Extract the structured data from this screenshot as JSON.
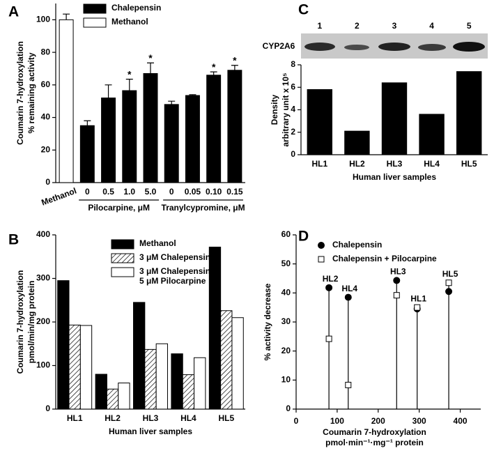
{
  "chart_data": [
    {
      "type": "bar",
      "panel": "A",
      "ylabel": [
        "Coumarin 7-hydroxylation",
        "% remaining activity"
      ],
      "categories": [
        "Methanol",
        "0",
        "0.5",
        "1.0",
        "5.0",
        "0",
        "0.05",
        "0.10",
        "0.15"
      ],
      "groups": [
        {
          "label": "Pilocarpine, μM",
          "span": [
            1,
            4
          ]
        },
        {
          "label": "Tranylcypromine, μM",
          "span": [
            5,
            8
          ]
        }
      ],
      "series": [
        {
          "name": "Chalepensin",
          "color": "#000000",
          "values": [
            null,
            35,
            52,
            56.5,
            67,
            48,
            53.5,
            66,
            69
          ],
          "errors": [
            null,
            3,
            8,
            7,
            6.5,
            2,
            0.5,
            2,
            3
          ]
        },
        {
          "name": "Methanol",
          "color": "#ffffff",
          "values": [
            100,
            null,
            null,
            null,
            null,
            null,
            null,
            null,
            null
          ],
          "errors": [
            3.5,
            null,
            null,
            null,
            null,
            null,
            null,
            null,
            null
          ]
        }
      ],
      "significance": [
        null,
        null,
        null,
        "*",
        "*",
        null,
        null,
        "*",
        "*"
      ],
      "ylim": [
        0,
        110
      ],
      "yticks": [
        0,
        20,
        40,
        60,
        80,
        100
      ]
    },
    {
      "type": "bar",
      "panel": "B",
      "ylabel": [
        "Coumarin 7-hydroxylation",
        "pmol/min/mg protein"
      ],
      "xlabel": [
        "Human liver samples"
      ],
      "categories": [
        "HL1",
        "HL2",
        "HL3",
        "HL4",
        "HL5"
      ],
      "series": [
        {
          "name": "Methanol",
          "color": "#000000",
          "values": [
            295,
            80,
            245,
            127,
            372
          ]
        },
        {
          "name": "3 μM Chalepensin",
          "color": "#ffffff",
          "hatch": true,
          "values": [
            193,
            46,
            137,
            79,
            226
          ]
        },
        {
          "name": "3 μM Chalepensin + 5 μM Pilocarpine",
          "color": "#ffffff",
          "values": [
            192,
            60,
            150,
            118,
            210
          ]
        }
      ],
      "ylim": [
        0,
        400
      ],
      "yticks": [
        0,
        100,
        200,
        300,
        400
      ]
    },
    {
      "type": "bar",
      "panel": "C",
      "blot": {
        "label": "CYP2A6",
        "lanes": [
          "1",
          "2",
          "3",
          "4",
          "5"
        ]
      },
      "ylabel": [
        "Density",
        "arbitrary unit x 10⁵"
      ],
      "xlabel": [
        "Human liver samples"
      ],
      "categories": [
        "HL1",
        "HL2",
        "HL3",
        "HL4",
        "HL5"
      ],
      "values": [
        5.8,
        2.1,
        6.4,
        3.6,
        7.4
      ],
      "color": "#000000",
      "ylim": [
        0,
        8
      ],
      "yticks": [
        0,
        2,
        4,
        6,
        8
      ]
    },
    {
      "type": "scatter",
      "panel": "D",
      "ylabel": [
        "% activity decrease"
      ],
      "xlabel": [
        "Coumarin 7-hydroxylation",
        "pmol·min⁻¹·mg⁻¹ protein"
      ],
      "x": [
        295,
        80,
        245,
        127,
        372
      ],
      "point_labels": [
        "HL1",
        "HL2",
        "HL3",
        "HL4",
        "HL5"
      ],
      "series": [
        {
          "name": "Chalepensin",
          "color": "#000000",
          "marker": "circle",
          "values": [
            34.5,
            41.8,
            44.3,
            38.5,
            40.5
          ]
        },
        {
          "name": "Chalepensin + Pilocarpine",
          "color": "#ffffff",
          "marker": "square",
          "values": [
            35,
            24.2,
            39.2,
            8.3,
            43.5
          ]
        }
      ],
      "droplines": true,
      "xlim": [
        0,
        450
      ],
      "xticks": [
        0,
        100,
        200,
        300,
        400
      ],
      "ylim": [
        0,
        60
      ],
      "yticks": [
        0,
        10,
        20,
        30,
        40,
        50,
        60
      ]
    }
  ]
}
